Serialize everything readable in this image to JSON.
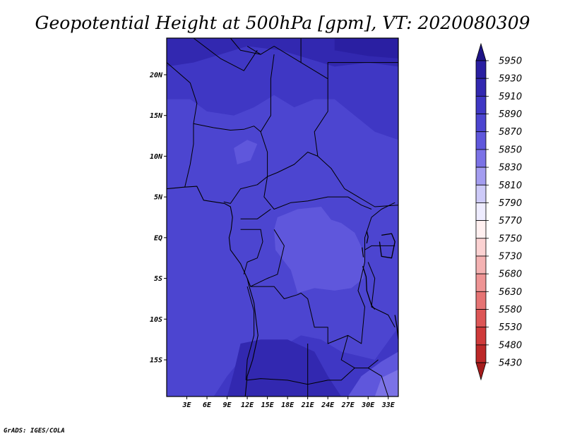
{
  "title": "Geopotential Height at 500hPa [gpm], VT: 2020080309",
  "credit": "GrADS: IGES/COLA",
  "map": {
    "lon_range": [
      0,
      34.5
    ],
    "lat_range": [
      -19.5,
      24.5
    ],
    "lat_ticks": [
      {
        "value": 20,
        "label": "20N"
      },
      {
        "value": 15,
        "label": "15N"
      },
      {
        "value": 10,
        "label": "10N"
      },
      {
        "value": 5,
        "label": "5N"
      },
      {
        "value": 0,
        "label": "EQ"
      },
      {
        "value": -5,
        "label": "5S"
      },
      {
        "value": -10,
        "label": "10S"
      },
      {
        "value": -15,
        "label": "15S"
      }
    ],
    "lon_ticks": [
      {
        "value": 3,
        "label": "3E"
      },
      {
        "value": 6,
        "label": "6E"
      },
      {
        "value": 9,
        "label": "9E"
      },
      {
        "value": 12,
        "label": "12E"
      },
      {
        "value": 15,
        "label": "15E"
      },
      {
        "value": 18,
        "label": "18E"
      },
      {
        "value": 21,
        "label": "21E"
      },
      {
        "value": 24,
        "label": "24E"
      },
      {
        "value": 27,
        "label": "27E"
      },
      {
        "value": 30,
        "label": "30E"
      },
      {
        "value": 33,
        "label": "33E"
      }
    ],
    "regions": [
      {
        "level": 5890,
        "color": "#3f37c4",
        "points": [
          [
            0,
            24.5
          ],
          [
            34.5,
            24.5
          ],
          [
            34.5,
            -19.5
          ],
          [
            0,
            -19.5
          ]
        ]
      },
      {
        "level": 5870,
        "color": "#4c45d0",
        "points": [
          [
            0,
            17
          ],
          [
            3.5,
            17
          ],
          [
            6,
            15.5
          ],
          [
            10,
            15
          ],
          [
            13,
            16
          ],
          [
            16,
            17.5
          ],
          [
            19,
            16
          ],
          [
            22,
            17
          ],
          [
            25,
            17
          ],
          [
            28,
            15
          ],
          [
            31,
            13
          ],
          [
            34.5,
            12
          ],
          [
            34.5,
            -11
          ],
          [
            31,
            -15
          ],
          [
            26,
            -14
          ],
          [
            23,
            -12.5
          ],
          [
            20,
            -12
          ],
          [
            18,
            -13
          ],
          [
            14,
            -14
          ],
          [
            11,
            -15
          ],
          [
            9,
            -17
          ],
          [
            7,
            -19.5
          ],
          [
            0,
            -19.5
          ]
        ]
      },
      {
        "level": 5910,
        "color": "#3228b0",
        "points": [
          [
            0,
            24.5
          ],
          [
            34.5,
            24.5
          ],
          [
            34.5,
            21
          ],
          [
            30,
            21.5
          ],
          [
            25,
            21
          ],
          [
            21,
            22
          ],
          [
            17,
            23
          ],
          [
            12,
            23.5
          ],
          [
            8,
            22.5
          ],
          [
            4,
            21.5
          ],
          [
            0,
            21
          ]
        ]
      },
      {
        "level": 5910,
        "color": "#3228b0",
        "points": [
          [
            11,
            -13
          ],
          [
            14,
            -12.5
          ],
          [
            18,
            -12.5
          ],
          [
            22,
            -14
          ],
          [
            24,
            -17
          ],
          [
            26,
            -19.5
          ],
          [
            9,
            -19.5
          ],
          [
            10,
            -16.5
          ]
        ]
      },
      {
        "level": 5930,
        "color": "#2a1fa2",
        "points": [
          [
            25,
            24.5
          ],
          [
            34.5,
            24.5
          ],
          [
            34.5,
            22
          ],
          [
            30,
            22.3
          ],
          [
            25,
            23
          ]
        ]
      },
      {
        "level": 5850,
        "color": "#5f57dc",
        "points": [
          [
            16.5,
            2.5
          ],
          [
            19.5,
            3.5
          ],
          [
            23,
            3.8
          ],
          [
            24.5,
            2.2
          ],
          [
            26,
            1.8
          ],
          [
            28,
            0.6
          ],
          [
            29.5,
            -2
          ],
          [
            29.3,
            -5
          ],
          [
            27.5,
            -6.2
          ],
          [
            25,
            -6.5
          ],
          [
            22,
            -6.2
          ],
          [
            19.5,
            -6.8
          ],
          [
            18.5,
            -4
          ],
          [
            16.2,
            -1.5
          ],
          [
            16,
            1
          ]
        ]
      },
      {
        "level": 5850,
        "color": "#5f57dc",
        "points": [
          [
            10,
            11
          ],
          [
            12,
            12
          ],
          [
            13.5,
            11.5
          ],
          [
            12.5,
            9.5
          ],
          [
            10.5,
            9
          ]
        ]
      },
      {
        "level": 5850,
        "color": "#5f57dc",
        "points": [
          [
            27,
            -19.5
          ],
          [
            29,
            -17
          ],
          [
            32,
            -15.2
          ],
          [
            34.5,
            -14
          ],
          [
            34.5,
            -19.5
          ]
        ]
      },
      {
        "level": 5830,
        "color": "#7b72e6",
        "points": [
          [
            31,
            -19.5
          ],
          [
            32,
            -17.2
          ],
          [
            34.5,
            -16.2
          ],
          [
            34.5,
            -19.5
          ]
        ]
      }
    ],
    "borders": [
      [
        [
          9.5,
          24.5
        ],
        [
          11,
          23
        ],
        [
          14,
          22.5
        ],
        [
          16,
          23.5
        ],
        [
          20,
          21.5
        ],
        [
          24,
          19.5
        ],
        [
          24,
          15.5
        ],
        [
          22,
          13
        ],
        [
          22.5,
          10
        ],
        [
          24.5,
          8.5
        ],
        [
          26.5,
          6
        ],
        [
          31,
          3.8
        ],
        [
          34.5,
          4
        ]
      ],
      [
        [
          12,
          23.5
        ],
        [
          14,
          22.5
        ]
      ],
      [
        [
          20,
          21.5
        ],
        [
          20,
          24.5
        ]
      ],
      [
        [
          24,
          19.5
        ],
        [
          24,
          21.5
        ],
        [
          34.5,
          21.5
        ]
      ],
      [
        [
          4,
          24.5
        ],
        [
          8,
          22
        ],
        [
          11.5,
          20.5
        ],
        [
          13.5,
          23
        ]
      ],
      [
        [
          0,
          21.5
        ],
        [
          3.5,
          19
        ],
        [
          4.5,
          16.5
        ],
        [
          4,
          14
        ],
        [
          4,
          11.5
        ],
        [
          3.5,
          9
        ],
        [
          2.7,
          6.2
        ]
      ],
      [
        [
          4,
          14
        ],
        [
          7,
          13.5
        ],
        [
          9.5,
          13.2
        ],
        [
          11.5,
          13.3
        ],
        [
          13,
          13.7
        ],
        [
          14,
          13
        ],
        [
          15,
          10.5
        ],
        [
          15,
          7.5
        ],
        [
          13.5,
          6.5
        ],
        [
          11,
          6
        ],
        [
          9.5,
          4.2
        ],
        [
          8.5,
          4.4
        ]
      ],
      [
        [
          14,
          13
        ],
        [
          15.5,
          15
        ],
        [
          15.5,
          19.5
        ],
        [
          16,
          22.5
        ]
      ],
      [
        [
          15,
          7.5
        ],
        [
          16.5,
          8
        ],
        [
          19,
          9
        ],
        [
          21,
          10.5
        ],
        [
          22.5,
          10
        ]
      ],
      [
        [
          15,
          7.5
        ],
        [
          14.5,
          5
        ],
        [
          16,
          3.5
        ],
        [
          18.5,
          4.3
        ],
        [
          21,
          4.5
        ],
        [
          24,
          5
        ],
        [
          27,
          5
        ],
        [
          29,
          4
        ],
        [
          30.5,
          3.5
        ]
      ],
      [
        [
          11,
          2.3
        ],
        [
          13.5,
          2.3
        ],
        [
          15.5,
          3.5
        ]
      ],
      [
        [
          11,
          1
        ],
        [
          14,
          1
        ],
        [
          14.3,
          -0.5
        ],
        [
          13.5,
          -2.5
        ],
        [
          12,
          -3
        ],
        [
          11.5,
          -4.5
        ]
      ],
      [
        [
          16,
          1
        ],
        [
          17.5,
          -1
        ],
        [
          16.5,
          -4.5
        ],
        [
          15,
          -5
        ],
        [
          12.5,
          -6
        ],
        [
          12,
          -5
        ]
      ],
      [
        [
          12.5,
          -6
        ],
        [
          16,
          -6
        ],
        [
          17.5,
          -7.5
        ],
        [
          19.5,
          -7
        ],
        [
          20,
          -6.8
        ],
        [
          21,
          -7.5
        ],
        [
          22,
          -11
        ],
        [
          24,
          -11
        ],
        [
          24,
          -13
        ],
        [
          27,
          -12
        ],
        [
          29,
          -13
        ],
        [
          29.5,
          -8.5
        ],
        [
          28.5,
          -6.5
        ],
        [
          29.5,
          -3
        ],
        [
          29.5,
          0
        ],
        [
          30.5,
          2.5
        ]
      ],
      [
        [
          30.5,
          2.5
        ],
        [
          32,
          3.5
        ],
        [
          34,
          4.3
        ]
      ],
      [
        [
          29.5,
          -1.5
        ],
        [
          30.5,
          -1
        ],
        [
          34,
          -1
        ]
      ],
      [
        [
          30,
          -3
        ],
        [
          31,
          -5
        ],
        [
          30.5,
          -8.5
        ],
        [
          33,
          -9.5
        ],
        [
          34,
          -11
        ]
      ],
      [
        [
          12,
          -6
        ],
        [
          13,
          -9
        ],
        [
          13,
          -12
        ],
        [
          12,
          -15
        ],
        [
          11.8,
          -17.5
        ]
      ],
      [
        [
          12,
          -17.5
        ],
        [
          14,
          -17.3
        ],
        [
          18,
          -17.5
        ],
        [
          21,
          -18
        ],
        [
          24,
          -17.5
        ]
      ],
      [
        [
          21,
          -13
        ],
        [
          21,
          -18
        ],
        [
          21,
          -19.5
        ]
      ],
      [
        [
          24,
          -17.5
        ],
        [
          26,
          -17.5
        ],
        [
          28,
          -16
        ],
        [
          30,
          -16
        ],
        [
          31.5,
          -15
        ]
      ],
      [
        [
          27,
          -12
        ],
        [
          26,
          -15
        ],
        [
          28,
          -16
        ]
      ],
      [
        [
          30,
          -16
        ],
        [
          32,
          -17
        ],
        [
          33,
          -19.5
        ]
      ]
    ],
    "coast": [
      [
        [
          0,
          6
        ],
        [
          2.5,
          6.2
        ],
        [
          4.5,
          6.3
        ],
        [
          5.5,
          4.6
        ],
        [
          7,
          4.4
        ],
        [
          8.6,
          4.2
        ],
        [
          9.5,
          3.8
        ],
        [
          9.8,
          2.5
        ],
        [
          9.6,
          1
        ],
        [
          9.3,
          0
        ],
        [
          9.5,
          -1.5
        ],
        [
          11,
          -3.2
        ],
        [
          12,
          -5
        ],
        [
          12.3,
          -6
        ],
        [
          13,
          -8
        ],
        [
          13.3,
          -10
        ],
        [
          13.6,
          -12
        ],
        [
          12.8,
          -15
        ],
        [
          12,
          -17
        ],
        [
          11.7,
          -19.5
        ]
      ]
    ],
    "lakes": [
      [
        [
          32,
          0.3
        ],
        [
          33.5,
          0.5
        ],
        [
          34,
          -0.5
        ],
        [
          33.5,
          -2.5
        ],
        [
          32,
          -2.3
        ],
        [
          31.7,
          -0.5
        ]
      ],
      [
        [
          29.2,
          -3.5
        ],
        [
          29.7,
          -4.8
        ],
        [
          29.8,
          -6.5
        ],
        [
          30.5,
          -8.3
        ],
        [
          31,
          -8.8
        ]
      ],
      [
        [
          34,
          -9.5
        ],
        [
          34.3,
          -11
        ],
        [
          34.5,
          -12.5
        ]
      ],
      [
        [
          29.8,
          0.8
        ],
        [
          30,
          0.1
        ],
        [
          29.8,
          -0.7
        ]
      ],
      [
        [
          29.1,
          -1.2
        ],
        [
          29.3,
          -2.4
        ]
      ]
    ]
  },
  "colorbar": {
    "levels": [
      {
        "label": "5950",
        "color": "#1e1486"
      },
      {
        "label": "5930",
        "color": "#2a1fa2"
      },
      {
        "label": "5910",
        "color": "#3228b0"
      },
      {
        "label": "5890",
        "color": "#3f37c4"
      },
      {
        "label": "5870",
        "color": "#4c45d0"
      },
      {
        "label": "5850",
        "color": "#5f57dc"
      },
      {
        "label": "5830",
        "color": "#7b72e6"
      },
      {
        "label": "5810",
        "color": "#a49df0"
      },
      {
        "label": "5790",
        "color": "#cdcaf8"
      },
      {
        "label": "5770",
        "color": "#eeecff"
      },
      {
        "label": "5750",
        "color": "#fff0f0"
      },
      {
        "label": "5730",
        "color": "#fbd2d2"
      },
      {
        "label": "5680",
        "color": "#f4b2b2"
      },
      {
        "label": "5630",
        "color": "#ee9494"
      },
      {
        "label": "5580",
        "color": "#e67474"
      },
      {
        "label": "5530",
        "color": "#dd5656"
      },
      {
        "label": "5480",
        "color": "#cf3a3a"
      },
      {
        "label": "5430",
        "color": "#bc2828"
      }
    ],
    "min_color": "#a51c1c"
  }
}
